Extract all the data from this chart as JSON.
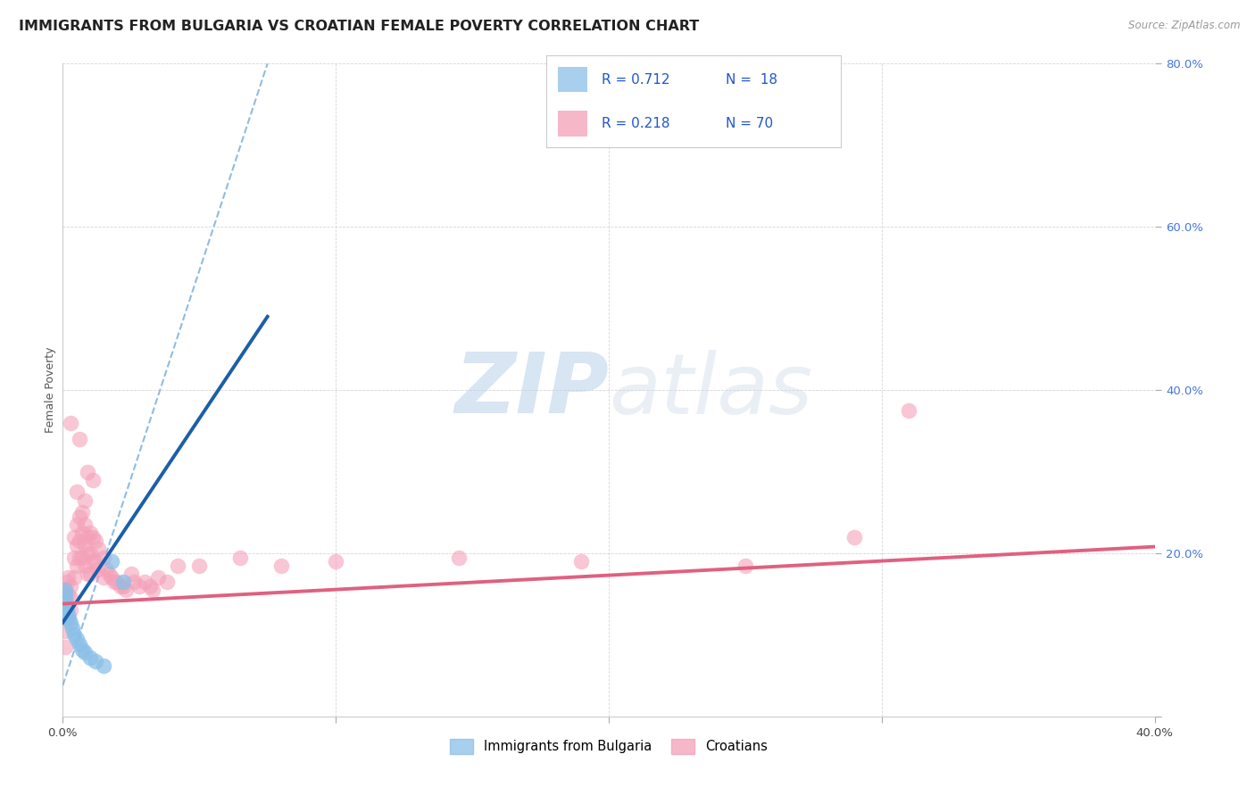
{
  "title": "IMMIGRANTS FROM BULGARIA VS CROATIAN FEMALE POVERTY CORRELATION CHART",
  "source": "Source: ZipAtlas.com",
  "ylabel": "Female Poverty",
  "xlim": [
    0.0,
    0.4
  ],
  "ylim": [
    0.0,
    0.8
  ],
  "bulgaria_color": "#8bbfe8",
  "croatia_color": "#f4a0b8",
  "bulgaria_line_color": "#1a5fa8",
  "croatia_line_color": "#e06080",
  "dashed_line_color": "#90bce0",
  "bg_color": "#ffffff",
  "grid_color": "#cccccc",
  "watermark_zip": "ZIP",
  "watermark_atlas": "atlas",
  "title_fontsize": 11.5,
  "axis_label_fontsize": 9,
  "tick_fontsize": 9.5,
  "legend_color": "#2255cc",
  "bulgaria_scatter": [
    [
      0.0008,
      0.155
    ],
    [
      0.001,
      0.148
    ],
    [
      0.0012,
      0.14
    ],
    [
      0.0015,
      0.13
    ],
    [
      0.002,
      0.125
    ],
    [
      0.0022,
      0.12
    ],
    [
      0.003,
      0.115
    ],
    [
      0.0035,
      0.108
    ],
    [
      0.004,
      0.1
    ],
    [
      0.005,
      0.095
    ],
    [
      0.006,
      0.088
    ],
    [
      0.007,
      0.082
    ],
    [
      0.008,
      0.078
    ],
    [
      0.01,
      0.072
    ],
    [
      0.012,
      0.068
    ],
    [
      0.015,
      0.062
    ],
    [
      0.022,
      0.165
    ],
    [
      0.018,
      0.19
    ]
  ],
  "croatia_scatter": [
    [
      0.0005,
      0.14
    ],
    [
      0.001,
      0.155
    ],
    [
      0.001,
      0.12
    ],
    [
      0.0015,
      0.165
    ],
    [
      0.002,
      0.17
    ],
    [
      0.002,
      0.15
    ],
    [
      0.003,
      0.16
    ],
    [
      0.003,
      0.145
    ],
    [
      0.003,
      0.13
    ],
    [
      0.004,
      0.22
    ],
    [
      0.004,
      0.195
    ],
    [
      0.004,
      0.17
    ],
    [
      0.005,
      0.235
    ],
    [
      0.005,
      0.21
    ],
    [
      0.005,
      0.185
    ],
    [
      0.006,
      0.245
    ],
    [
      0.006,
      0.215
    ],
    [
      0.006,
      0.195
    ],
    [
      0.007,
      0.25
    ],
    [
      0.007,
      0.225
    ],
    [
      0.007,
      0.195
    ],
    [
      0.008,
      0.235
    ],
    [
      0.008,
      0.21
    ],
    [
      0.008,
      0.185
    ],
    [
      0.009,
      0.22
    ],
    [
      0.009,
      0.2
    ],
    [
      0.009,
      0.175
    ],
    [
      0.01,
      0.225
    ],
    [
      0.01,
      0.2
    ],
    [
      0.01,
      0.175
    ],
    [
      0.011,
      0.22
    ],
    [
      0.011,
      0.19
    ],
    [
      0.012,
      0.215
    ],
    [
      0.012,
      0.19
    ],
    [
      0.013,
      0.205
    ],
    [
      0.013,
      0.18
    ],
    [
      0.015,
      0.195
    ],
    [
      0.015,
      0.17
    ],
    [
      0.016,
      0.18
    ],
    [
      0.017,
      0.175
    ],
    [
      0.018,
      0.17
    ],
    [
      0.019,
      0.165
    ],
    [
      0.02,
      0.165
    ],
    [
      0.021,
      0.16
    ],
    [
      0.022,
      0.16
    ],
    [
      0.023,
      0.155
    ],
    [
      0.025,
      0.175
    ],
    [
      0.026,
      0.165
    ],
    [
      0.028,
      0.16
    ],
    [
      0.03,
      0.165
    ],
    [
      0.032,
      0.16
    ],
    [
      0.033,
      0.155
    ],
    [
      0.035,
      0.17
    ],
    [
      0.038,
      0.165
    ],
    [
      0.042,
      0.185
    ],
    [
      0.05,
      0.185
    ],
    [
      0.065,
      0.195
    ],
    [
      0.08,
      0.185
    ],
    [
      0.1,
      0.19
    ],
    [
      0.003,
      0.36
    ],
    [
      0.006,
      0.34
    ],
    [
      0.009,
      0.3
    ],
    [
      0.011,
      0.29
    ],
    [
      0.005,
      0.275
    ],
    [
      0.008,
      0.265
    ],
    [
      0.145,
      0.195
    ],
    [
      0.19,
      0.19
    ],
    [
      0.31,
      0.375
    ],
    [
      0.29,
      0.22
    ],
    [
      0.25,
      0.185
    ],
    [
      0.001,
      0.085
    ],
    [
      0.001,
      0.105
    ]
  ],
  "bulgaria_trendline": [
    [
      0.0,
      0.115
    ],
    [
      0.075,
      0.49
    ]
  ],
  "croatia_trendline": [
    [
      0.0,
      0.138
    ],
    [
      0.4,
      0.208
    ]
  ],
  "bulgaria_dashed_line": [
    [
      0.0,
      0.038
    ],
    [
      0.075,
      0.8
    ]
  ]
}
